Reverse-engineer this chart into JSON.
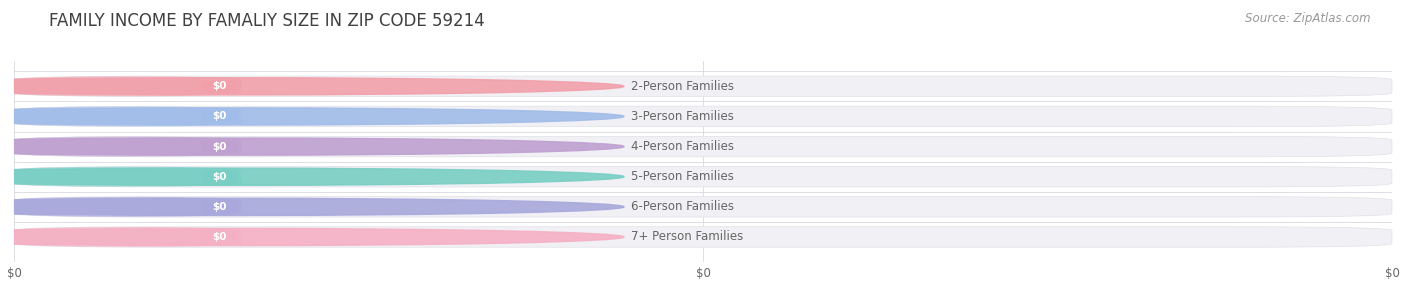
{
  "title": "FAMILY INCOME BY FAMALIY SIZE IN ZIP CODE 59214",
  "source": "Source: ZipAtlas.com",
  "categories": [
    "2-Person Families",
    "3-Person Families",
    "4-Person Families",
    "5-Person Families",
    "6-Person Families",
    "7+ Person Families"
  ],
  "values": [
    0,
    0,
    0,
    0,
    0,
    0
  ],
  "bar_colors": [
    "#f2a0aa",
    "#a0bce8",
    "#bfa0d0",
    "#78cec4",
    "#a8a8dc",
    "#f5b0c4"
  ],
  "bar_bg_color": "#f0f0f5",
  "label_color": "#666666",
  "value_label_color": "#ffffff",
  "title_color": "#404040",
  "source_color": "#999999",
  "bg_color": "#ffffff",
  "x_tick_labels": [
    "$0",
    "$0",
    "$0"
  ],
  "title_fontsize": 12,
  "label_fontsize": 8.5,
  "source_fontsize": 8.5,
  "bar_height": 0.68,
  "bar_gap": 0.32,
  "label_bar_width": 0.165,
  "rounding_size": 0.12
}
